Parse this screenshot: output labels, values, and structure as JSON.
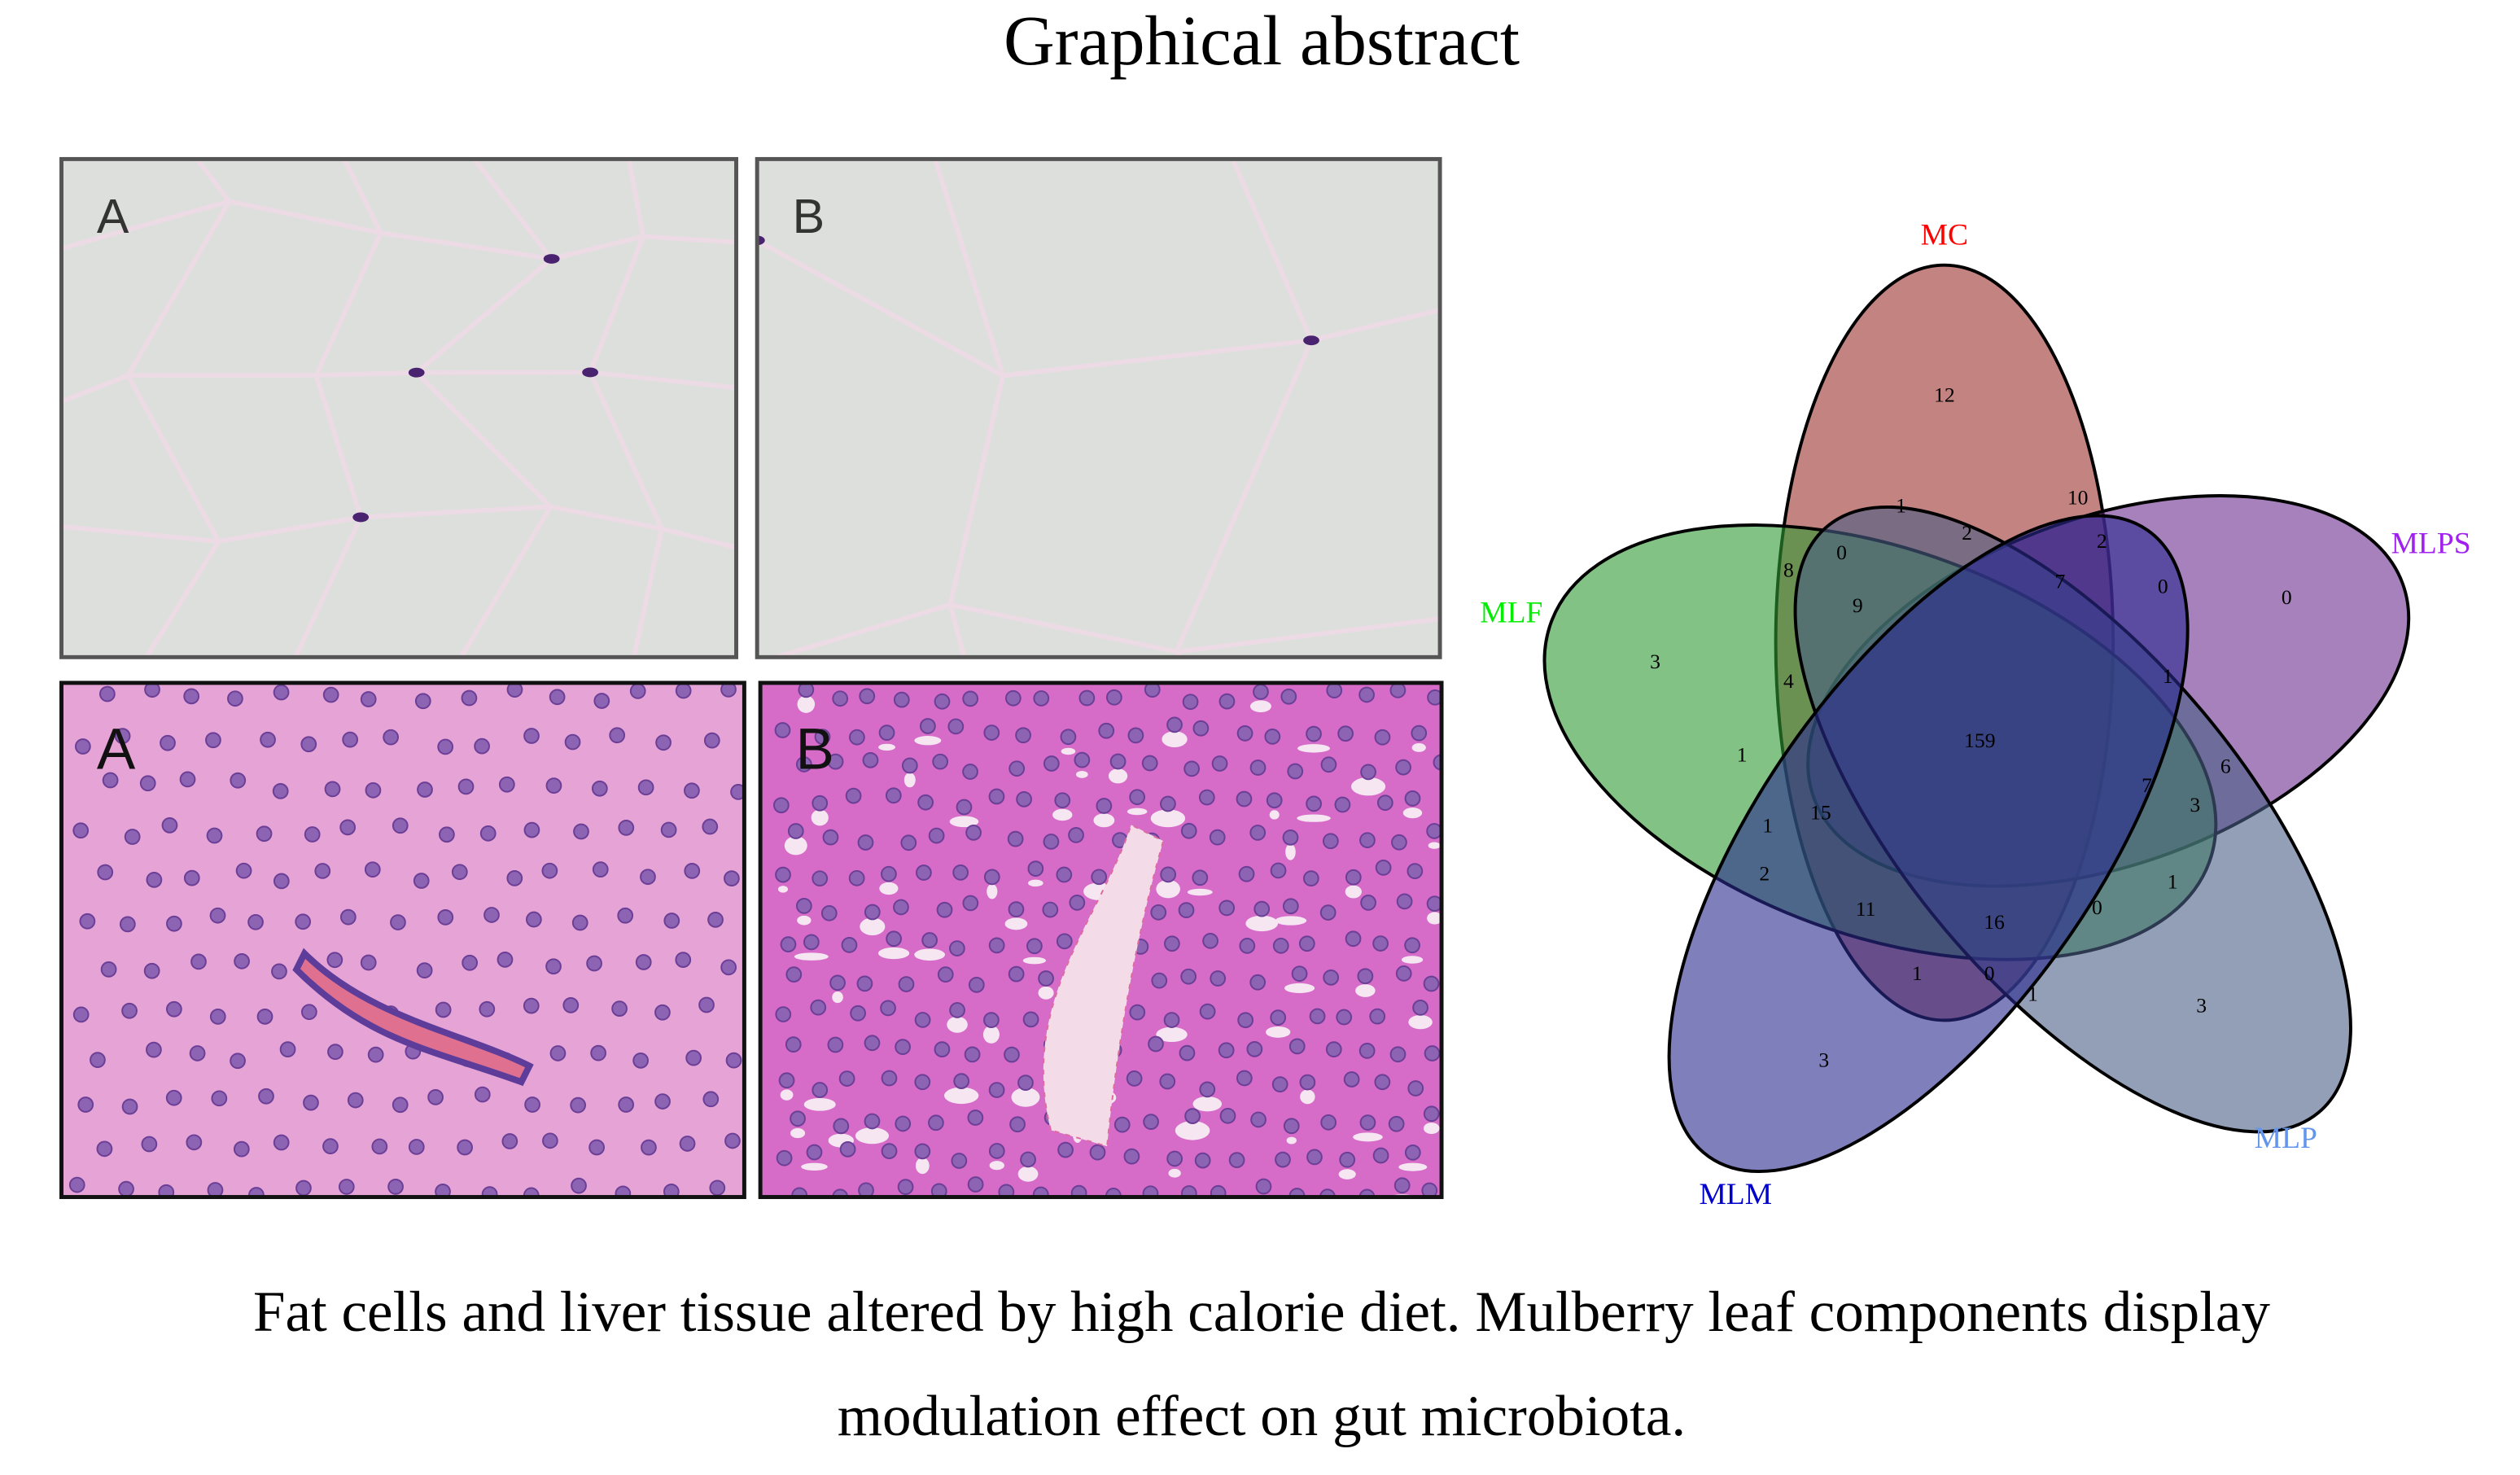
{
  "title": "Graphical abstract",
  "panels": {
    "fat": [
      "A",
      "B"
    ],
    "liver": [
      "A",
      "B"
    ]
  },
  "venn": {
    "sets": [
      {
        "label": "MC",
        "color": "#ff0000"
      },
      {
        "label": "MLPS",
        "color": "#a020f0"
      },
      {
        "label": "MLF",
        "color": "#00ee00"
      },
      {
        "label": "MLP",
        "color": "#6495ed"
      },
      {
        "label": "MLM",
        "color": "#0000cd"
      }
    ],
    "regions": [
      12,
      1,
      10,
      0,
      2,
      2,
      0,
      8,
      9,
      7,
      0,
      3,
      4,
      1,
      159,
      1,
      6,
      7,
      3,
      1,
      15,
      2,
      1,
      11,
      16,
      0,
      3,
      1,
      0,
      1,
      3
    ]
  },
  "caption": [
    "Fat cells and liver tissue altered by high calorie diet. Mulberry leaf components display",
    "modulation effect on gut microbiota."
  ]
}
